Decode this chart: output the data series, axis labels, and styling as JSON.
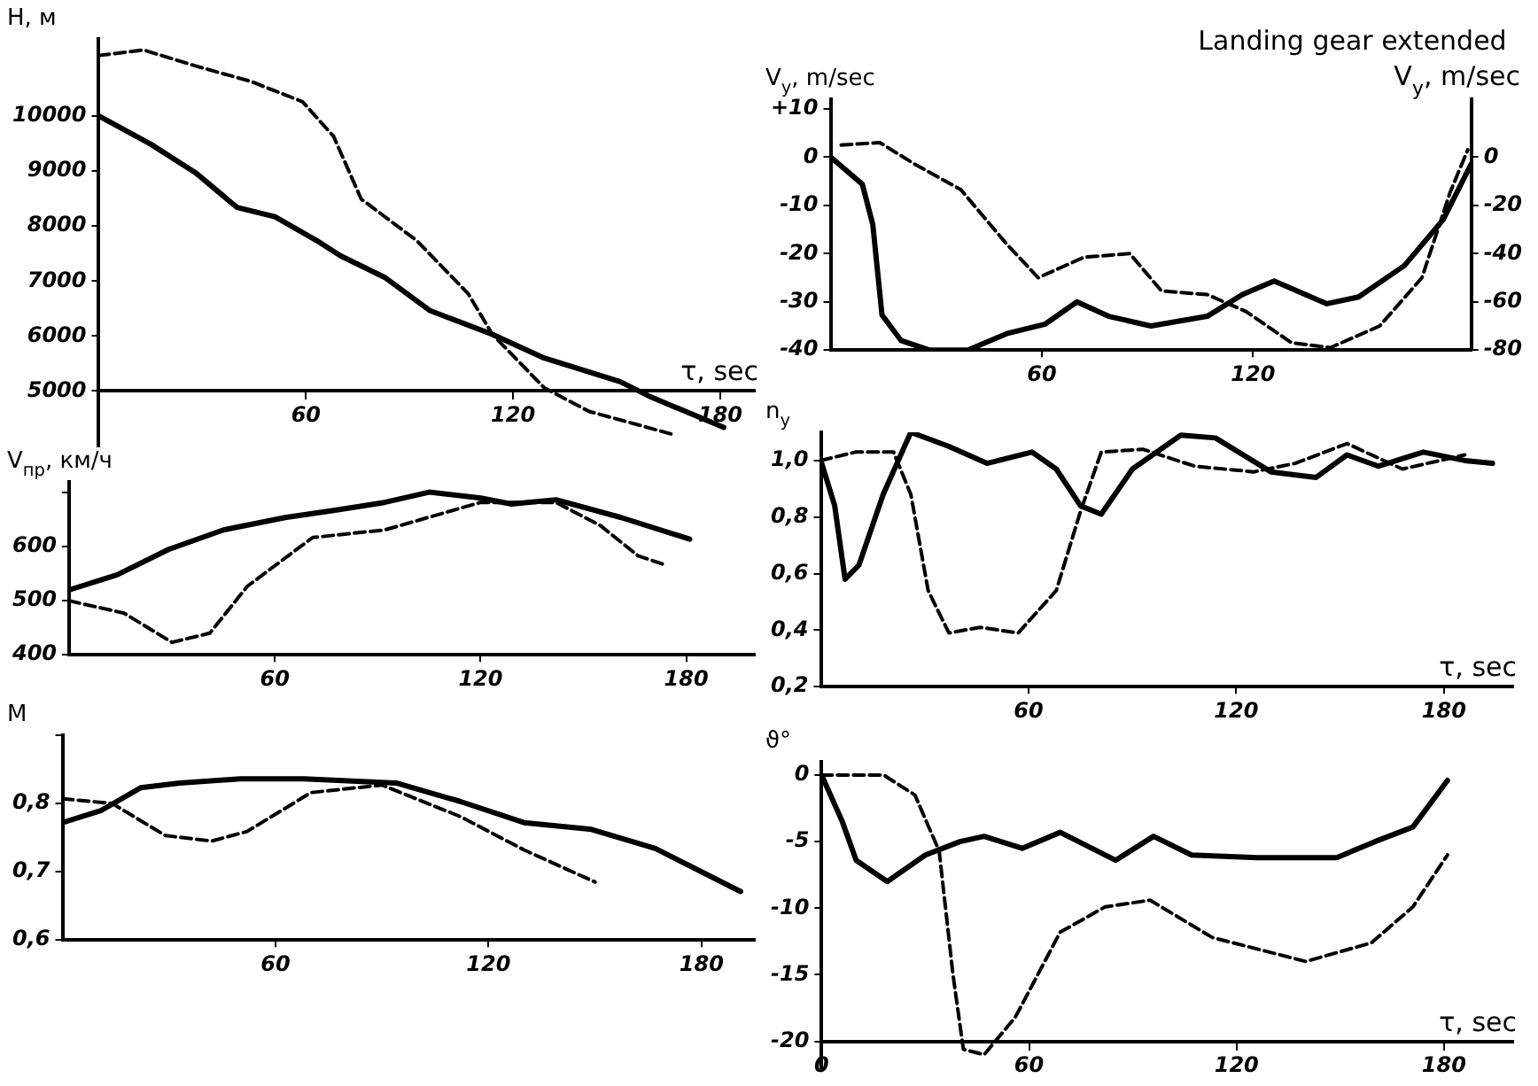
{
  "chart_data": [
    {
      "type": "line",
      "ylabel": "H, м",
      "xlabel": "τ, sec",
      "xlim": [
        0,
        190
      ],
      "xticks": [
        60,
        120,
        180
      ],
      "ylim": [
        4000,
        11400
      ],
      "yticks": [
        5000,
        6000,
        7000,
        8000,
        9000,
        10000
      ],
      "grid": false,
      "legend": false,
      "marker": "none",
      "series": [
        {
          "color": "#000000",
          "line_style": "solid",
          "x": [
            0,
            15,
            28,
            40,
            51,
            63,
            70,
            83,
            96,
            114,
            129,
            151,
            160,
            181
          ],
          "values": [
            10000,
            9490,
            8970,
            8340,
            8170,
            7740,
            7460,
            7060,
            6460,
            6030,
            5600,
            5170,
            4890,
            4340
          ]
        },
        {
          "color": "#000000",
          "line_style": "dashed",
          "x": [
            0,
            13,
            28,
            44,
            59,
            68,
            76,
            92,
            107,
            114,
            129,
            142,
            167
          ],
          "values": [
            11100,
            11200,
            10910,
            10630,
            10260,
            9630,
            8490,
            7740,
            6770,
            6030,
            5060,
            4630,
            4200
          ]
        }
      ]
    },
    {
      "type": "line",
      "ylabel": "V$_{пр}$, км/ч",
      "xlim": [
        0,
        200
      ],
      "xticks": [
        60,
        120,
        180
      ],
      "ylim": [
        400,
        720
      ],
      "yticks": [
        400,
        500,
        600,
        {
          "value": 700,
          "label": null
        }
      ],
      "grid": false,
      "legend": false,
      "marker": "none",
      "series": [
        {
          "color": "#000000",
          "line_style": "solid",
          "x": [
            0,
            14,
            29,
            45,
            63,
            78,
            92,
            105,
            120,
            129,
            142,
            161,
            181
          ],
          "values": [
            520,
            548,
            595,
            631,
            654,
            668,
            682,
            701,
            690,
            679,
            687,
            654,
            614
          ]
        },
        {
          "color": "#000000",
          "line_style": "dashed",
          "x": [
            0,
            16,
            30,
            41,
            52,
            71,
            92,
            120,
            142,
            155,
            166,
            174
          ],
          "values": [
            500,
            477,
            423,
            440,
            527,
            617,
            631,
            682,
            682,
            639,
            583,
            566
          ]
        }
      ]
    },
    {
      "type": "line",
      "ylabel": "M",
      "xlim": [
        0,
        195
      ],
      "xticks": [
        60,
        120,
        180
      ],
      "ylim": [
        0.6,
        0.9
      ],
      "yticks": [
        {
          "value": 0.6,
          "label": "0,6"
        },
        {
          "value": 0.7,
          "label": "0,7"
        },
        {
          "value": 0.8,
          "label": "0,8"
        },
        {
          "value": 0.9,
          "label": null
        }
      ],
      "grid": false,
      "legend": false,
      "marker": "none",
      "series": [
        {
          "color": "#000000",
          "line_style": "solid",
          "x": [
            0,
            11,
            22,
            33,
            50,
            68,
            94,
            112,
            130,
            149,
            167,
            191
          ],
          "values": [
            0.772,
            0.79,
            0.823,
            0.83,
            0.836,
            0.836,
            0.83,
            0.803,
            0.772,
            0.762,
            0.734,
            0.671
          ]
        },
        {
          "color": "#000000",
          "line_style": "dashed",
          "x": [
            0,
            14,
            29,
            42,
            52,
            70,
            90,
            112,
            130,
            150
          ],
          "values": [
            0.807,
            0.8,
            0.753,
            0.745,
            0.759,
            0.816,
            0.827,
            0.781,
            0.732,
            0.685
          ]
        }
      ]
    },
    {
      "type": "line",
      "ylabel": "V$_{y}$, m/sec",
      "y2label": "V$_{y}$, m/sec",
      "annotations": [
        "Landing gear extended"
      ],
      "xlim": [
        0,
        182
      ],
      "xticks": [
        60,
        120
      ],
      "ylim": [
        -40,
        12
      ],
      "yticks": [
        -40,
        -30,
        -20,
        -10,
        0,
        {
          "value": 10,
          "label": "+10"
        }
      ],
      "y2lim": [
        -80,
        24
      ],
      "y2ticks": [
        -80,
        -60,
        -40,
        -20,
        0
      ],
      "grid": false,
      "legend": false,
      "marker": "none",
      "series": [
        {
          "color": "#000000",
          "line_style": "solid",
          "x": [
            0,
            9,
            12,
            14.6,
            20,
            28,
            39,
            50,
            61,
            70,
            79,
            91,
            107,
            117,
            126,
            141,
            150,
            163,
            174,
            182
          ],
          "values": [
            0,
            -5.6,
            -14,
            -32.7,
            -38,
            -40,
            -40,
            -36.6,
            -34.6,
            -30,
            -33,
            -35,
            -33,
            -28.5,
            -25.7,
            -30.4,
            -29,
            -22.5,
            -13,
            -1.4
          ]
        },
        {
          "color": "#000000",
          "line_style": "dashed",
          "axis": "y2",
          "x": [
            3,
            14,
            24,
            37,
            50,
            59,
            72,
            85,
            94,
            107,
            118,
            131,
            142,
            156,
            168,
            176,
            181
          ],
          "values": [
            5,
            6,
            -3,
            -13.5,
            -36,
            -50,
            -41.5,
            -40,
            -55.5,
            -57,
            -64,
            -77,
            -79,
            -70,
            -50,
            -14.6,
            3
          ]
        }
      ]
    },
    {
      "type": "line",
      "ylabel": "n$_{y}$",
      "xlabel": "τ, sec",
      "xlim": [
        0,
        200
      ],
      "xticks": [
        60,
        120,
        180
      ],
      "ylim": [
        0.2,
        1.1
      ],
      "yticks": [
        {
          "value": 0.2,
          "label": "0,2"
        },
        {
          "value": 0.4,
          "label": "0,4"
        },
        {
          "value": 0.6,
          "label": "0,6"
        },
        {
          "value": 0.8,
          "label": "0,8"
        },
        {
          "value": 1.0,
          "label": "1,0"
        }
      ],
      "grid": false,
      "legend": false,
      "marker": "none",
      "series": [
        {
          "color": "#000000",
          "line_style": "solid",
          "x": [
            0,
            4,
            7,
            11,
            18,
            26,
            37,
            48,
            61,
            68,
            75,
            81,
            90,
            104,
            114,
            130,
            143,
            152,
            161,
            174,
            186,
            194
          ],
          "values": [
            1.0,
            0.84,
            0.58,
            0.63,
            0.88,
            1.1,
            1.05,
            0.99,
            1.03,
            0.97,
            0.84,
            0.81,
            0.97,
            1.09,
            1.08,
            0.96,
            0.94,
            1.02,
            0.98,
            1.03,
            1.0,
            0.99
          ]
        },
        {
          "color": "#000000",
          "line_style": "dashed",
          "x": [
            0,
            10,
            21,
            26,
            31,
            37,
            46,
            57,
            68,
            75,
            81,
            93,
            108,
            125,
            137,
            152,
            168,
            186
          ],
          "values": [
            1.0,
            1.03,
            1.03,
            0.88,
            0.54,
            0.39,
            0.41,
            0.39,
            0.54,
            0.82,
            1.03,
            1.04,
            0.98,
            0.96,
            0.99,
            1.06,
            0.97,
            1.02
          ]
        }
      ]
    },
    {
      "type": "line",
      "ylabel": "ϑ°",
      "xlabel": "τ, sec",
      "xlim": [
        0,
        200
      ],
      "xticks": [
        0,
        60,
        120,
        180
      ],
      "ylim": [
        -22,
        1
      ],
      "yticks": [
        -20,
        -15,
        -10,
        -5,
        0
      ],
      "grid": false,
      "legend": false,
      "marker": "none",
      "series": [
        {
          "color": "#000000",
          "line_style": "solid",
          "x": [
            0,
            6,
            10,
            19,
            30,
            40,
            47,
            58,
            69,
            85,
            96,
            107,
            126,
            149,
            160,
            171,
            181
          ],
          "values": [
            0,
            -3.5,
            -6.4,
            -8,
            -6,
            -5,
            -4.6,
            -5.5,
            -4.3,
            -6.4,
            -4.6,
            -6,
            -6.2,
            -6.2,
            -5,
            -3.9,
            -0.4
          ]
        },
        {
          "color": "#000000",
          "line_style": "dashed",
          "x": [
            0,
            18,
            27,
            34,
            38,
            41,
            47,
            56,
            69,
            82,
            95,
            113,
            140,
            159,
            171,
            181
          ],
          "values": [
            0,
            0,
            -1.5,
            -5.7,
            -15,
            -20.6,
            -21,
            -18.2,
            -11.8,
            -9.9,
            -9.4,
            -12.2,
            -14,
            -12.6,
            -9.9,
            -6
          ]
        }
      ]
    }
  ]
}
